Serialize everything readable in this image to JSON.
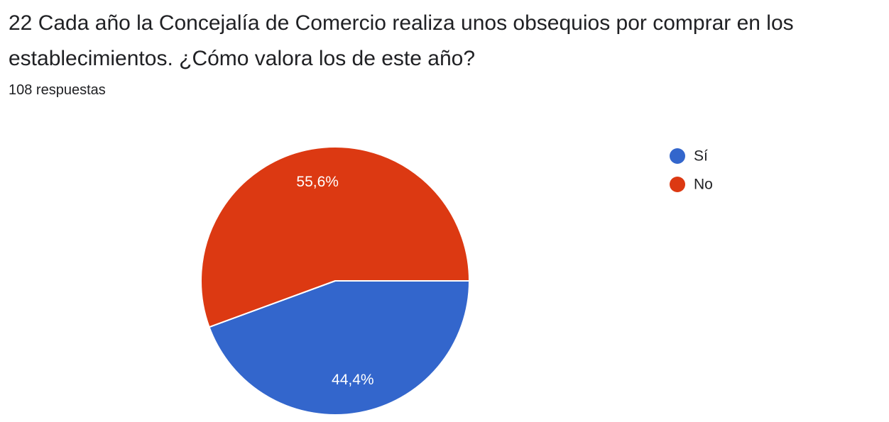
{
  "question": {
    "title": "22 Cada año la Concejalía de Comercio realiza unos obsequios por comprar en los establecimientos. ¿Cómo valora los de este año?",
    "response_count": "108 respuestas"
  },
  "chart_data": {
    "type": "pie",
    "categories": [
      "Sí",
      "No"
    ],
    "values": [
      44.4,
      55.6
    ],
    "value_labels": [
      "44,4%",
      "55,6%"
    ],
    "colors": [
      "#3366cc",
      "#dc3912"
    ],
    "legend": [
      "Sí",
      "No"
    ],
    "legend_position": "top-right"
  }
}
